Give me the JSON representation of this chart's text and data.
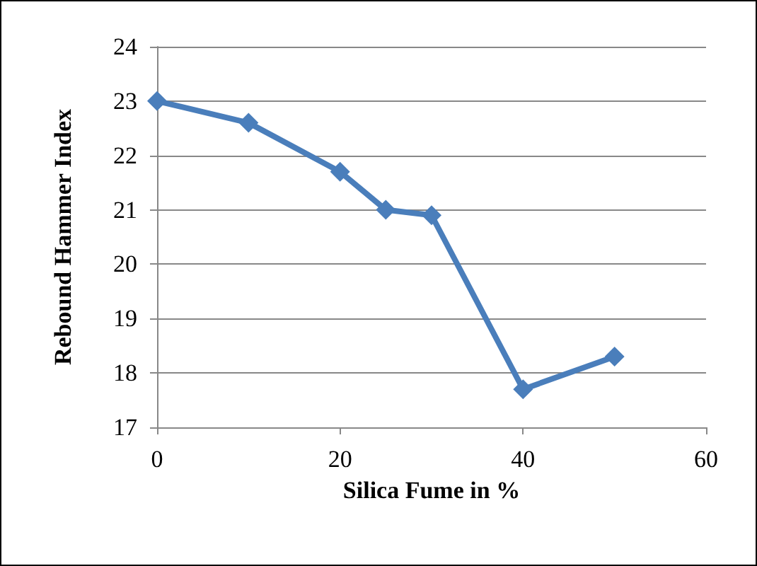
{
  "chart_data": {
    "type": "line",
    "xlabel": "Silica Fume in %",
    "ylabel": "Rebound Hammer Index",
    "x": [
      0,
      10,
      20,
      25,
      30,
      40,
      50
    ],
    "series": [
      {
        "color": "#4a7ebb",
        "values": [
          23,
          22.6,
          21.7,
          21,
          20.9,
          17.7,
          18.3
        ]
      }
    ],
    "xlim": [
      0,
      60
    ],
    "xticks": [
      0,
      20,
      40,
      60
    ],
    "ylim": [
      17,
      24
    ],
    "yticks": [
      17,
      18,
      19,
      20,
      21,
      22,
      23,
      24
    ],
    "grid": "y",
    "marker": "diamond",
    "line_style": "solid"
  }
}
